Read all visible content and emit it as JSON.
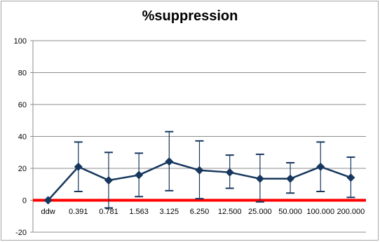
{
  "chart_data": {
    "type": "line",
    "title": "%suppression",
    "categories": [
      "ddw",
      "0.391",
      "0.781",
      "1.563",
      "3.125",
      "6.250",
      "12.500",
      "25.000",
      "50.000",
      "100.000",
      "200.000"
    ],
    "series": [
      {
        "values": [
          0,
          21,
          12.5,
          15.8,
          24.3,
          18.8,
          17.5,
          13.5,
          13.5,
          21,
          14.2
        ],
        "error_upper": [
          0,
          36.5,
          30,
          29.5,
          43,
          37.2,
          28.3,
          28.8,
          23.5,
          36.5,
          27
        ],
        "error_lower": [
          0,
          5.5,
          -4.8,
          2.3,
          6,
          1,
          7.5,
          -1,
          4.5,
          5.5,
          1.8
        ],
        "color": "#17375e"
      }
    ],
    "baseline": {
      "value": 0,
      "color": "#ff0000"
    },
    "ylim": [
      -20,
      100
    ],
    "yticks": [
      -20,
      0,
      20,
      40,
      60,
      80,
      100
    ],
    "grid": true,
    "gridColor": "#8c8c8c",
    "legend": "none"
  }
}
